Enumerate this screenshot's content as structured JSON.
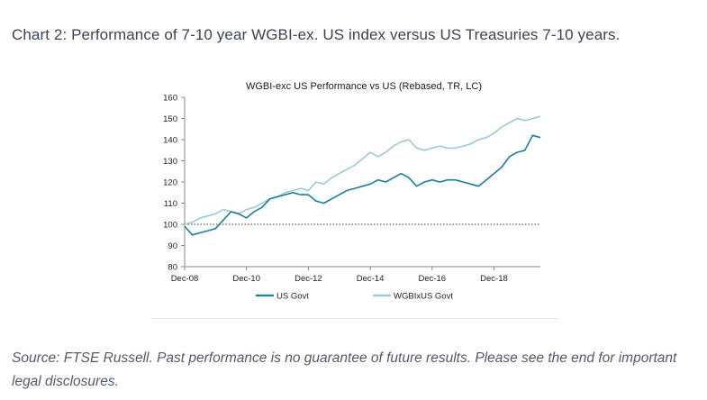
{
  "page": {
    "heading": "Chart 2: Performance of 7-10 year WGBI-ex. US index versus US Treasuries 7-10 years.",
    "source_note": "Source: FTSE Russell. Past performance is no guarantee of future results. Please see the end for important legal disclosures."
  },
  "chart_data": {
    "type": "line",
    "title": "WGBI-exc US Performance vs US (Rebased, TR, LC)",
    "xlabel": "",
    "ylabel": "",
    "x_tick_labels": [
      "Dec-08",
      "Dec-10",
      "Dec-12",
      "Dec-14",
      "Dec-16",
      "Dec-18"
    ],
    "x_range": [
      "Dec-08",
      "Jun-20"
    ],
    "ylim": [
      80,
      160
    ],
    "y_ticks": [
      80,
      90,
      100,
      110,
      120,
      130,
      140,
      150,
      160
    ],
    "grid": false,
    "reference_line": {
      "value": 100,
      "style": "dotted"
    },
    "legend_position": "bottom",
    "x": [
      "Dec-08",
      "Mar-09",
      "Jun-09",
      "Sep-09",
      "Dec-09",
      "Mar-10",
      "Jun-10",
      "Sep-10",
      "Dec-10",
      "Mar-11",
      "Jun-11",
      "Sep-11",
      "Dec-11",
      "Mar-12",
      "Jun-12",
      "Sep-12",
      "Dec-12",
      "Mar-13",
      "Jun-13",
      "Sep-13",
      "Dec-13",
      "Mar-14",
      "Jun-14",
      "Sep-14",
      "Dec-14",
      "Mar-15",
      "Jun-15",
      "Sep-15",
      "Dec-15",
      "Mar-16",
      "Jun-16",
      "Sep-16",
      "Dec-16",
      "Mar-17",
      "Jun-17",
      "Sep-17",
      "Dec-17",
      "Mar-18",
      "Jun-18",
      "Sep-18",
      "Dec-18",
      "Mar-19",
      "Jun-19",
      "Sep-19",
      "Dec-19",
      "Mar-20",
      "Jun-20"
    ],
    "series": [
      {
        "name": "US Govt",
        "color": "#1b7f99",
        "values": [
          99,
          95,
          96,
          97,
          98,
          102,
          106,
          105,
          103,
          106,
          108,
          112,
          113,
          114,
          115,
          114,
          114,
          111,
          110,
          112,
          114,
          116,
          117,
          118,
          119,
          121,
          120,
          122,
          124,
          122,
          118,
          120,
          121,
          120,
          121,
          121,
          120,
          119,
          118,
          121,
          124,
          127,
          132,
          134,
          135,
          142,
          141
        ]
      },
      {
        "name": "WGBIxUS Govt",
        "color": "#9ec8d6",
        "values": [
          100,
          101,
          103,
          104,
          105,
          107,
          106,
          105,
          107,
          108,
          110,
          112,
          113,
          115,
          116,
          117,
          116,
          120,
          119,
          122,
          124,
          126,
          128,
          131,
          134,
          132,
          134,
          137,
          139,
          140,
          136,
          135,
          136,
          137,
          136,
          136,
          137,
          138,
          140,
          141,
          143,
          146,
          148,
          150,
          149,
          150,
          151
        ]
      }
    ]
  }
}
